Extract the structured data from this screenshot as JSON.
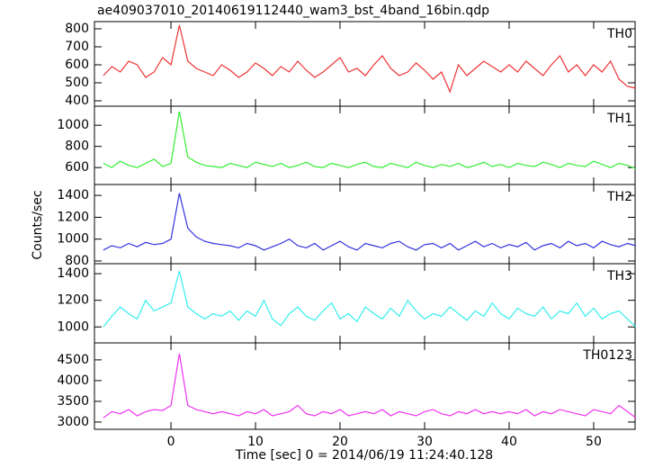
{
  "chart_data": {
    "type": "line",
    "title": "ae409037010_20140619112440_wam3_bst_4band_16bin.qdp",
    "xlabel": "Time [sec] 0 = 2014/06/19 11:24:40.128",
    "ylabel": "Counts/sec",
    "x": [
      -8,
      -7,
      -6,
      -5,
      -4,
      -3,
      -2,
      -1,
      0,
      1,
      2,
      3,
      4,
      5,
      6,
      7,
      8,
      9,
      10,
      11,
      12,
      13,
      14,
      15,
      16,
      17,
      18,
      19,
      20,
      21,
      22,
      23,
      24,
      25,
      26,
      27,
      28,
      29,
      30,
      31,
      32,
      33,
      34,
      35,
      36,
      37,
      38,
      39,
      40,
      41,
      42,
      43,
      44,
      45,
      46,
      47,
      48,
      49,
      50,
      51,
      52,
      53,
      54,
      55
    ],
    "xlim": [
      -9.05,
      54.9
    ],
    "xticks": [
      0,
      10,
      20,
      30,
      40,
      50
    ],
    "panels": [
      {
        "name": "TH0",
        "color": "#ee3333",
        "ylim": [
          370,
          840
        ],
        "yticks": [
          400,
          500,
          600,
          700,
          800
        ],
        "values": [
          540,
          590,
          560,
          620,
          600,
          530,
          560,
          640,
          600,
          820,
          620,
          580,
          560,
          540,
          600,
          570,
          530,
          560,
          610,
          580,
          540,
          590,
          560,
          620,
          570,
          530,
          560,
          600,
          640,
          560,
          580,
          540,
          600,
          650,
          580,
          540,
          560,
          610,
          570,
          520,
          560,
          450,
          600,
          540,
          580,
          620,
          590,
          560,
          600,
          560,
          620,
          580,
          540,
          600,
          650,
          560,
          600,
          540,
          600,
          560,
          620,
          520,
          480,
          470
        ]
      },
      {
        "name": "TH1",
        "color": "#33ee33",
        "ylim": [
          440,
          1180
        ],
        "yticks": [
          600,
          800,
          1000
        ],
        "values": [
          640,
          600,
          660,
          620,
          600,
          640,
          680,
          610,
          640,
          1130,
          700,
          650,
          620,
          610,
          600,
          640,
          620,
          600,
          650,
          630,
          610,
          640,
          600,
          620,
          650,
          610,
          600,
          640,
          620,
          600,
          630,
          650,
          610,
          600,
          640,
          620,
          600,
          650,
          620,
          600,
          630,
          610,
          640,
          600,
          620,
          650,
          610,
          630,
          600,
          640,
          620,
          610,
          650,
          630,
          600,
          640,
          620,
          610,
          660,
          630,
          600,
          640,
          620,
          590
        ]
      },
      {
        "name": "TH2",
        "color": "#3333dd",
        "ylim": [
          775,
          1500
        ],
        "yticks": [
          800,
          1000,
          1200,
          1400
        ],
        "values": [
          900,
          940,
          920,
          960,
          930,
          970,
          950,
          960,
          1000,
          1420,
          1100,
          1020,
          980,
          960,
          950,
          940,
          920,
          960,
          940,
          900,
          930,
          960,
          1000,
          940,
          920,
          960,
          900,
          940,
          980,
          930,
          900,
          960,
          940,
          920,
          960,
          980,
          930,
          900,
          950,
          960,
          920,
          960,
          900,
          940,
          980,
          930,
          960,
          920,
          950,
          930,
          970,
          900,
          940,
          960,
          920,
          980,
          940,
          960,
          920,
          980,
          950,
          930,
          960,
          940
        ]
      },
      {
        "name": "TH3",
        "color": "#33eeee",
        "ylim": [
          880,
          1475
        ],
        "yticks": [
          1000,
          1200,
          1400
        ],
        "values": [
          1000,
          1080,
          1150,
          1100,
          1060,
          1200,
          1120,
          1150,
          1180,
          1420,
          1150,
          1100,
          1060,
          1100,
          1080,
          1120,
          1050,
          1120,
          1080,
          1200,
          1060,
          1010,
          1100,
          1150,
          1080,
          1050,
          1120,
          1180,
          1060,
          1100,
          1040,
          1150,
          1100,
          1060,
          1140,
          1080,
          1200,
          1120,
          1060,
          1100,
          1080,
          1150,
          1100,
          1050,
          1120,
          1080,
          1180,
          1100,
          1060,
          1140,
          1100,
          1080,
          1150,
          1060,
          1120,
          1100,
          1180,
          1080,
          1140,
          1060,
          1100,
          1120,
          1060,
          1000
        ]
      },
      {
        "name": "TH0123",
        "color": "#ee33ee",
        "ylim": [
          2825,
          4910
        ],
        "yticks": [
          3000,
          3500,
          4000,
          4500
        ],
        "values": [
          3100,
          3250,
          3200,
          3300,
          3150,
          3250,
          3300,
          3280,
          3400,
          4650,
          3400,
          3300,
          3250,
          3200,
          3250,
          3200,
          3150,
          3250,
          3200,
          3300,
          3150,
          3200,
          3250,
          3400,
          3200,
          3150,
          3250,
          3200,
          3300,
          3150,
          3200,
          3250,
          3200,
          3300,
          3150,
          3250,
          3200,
          3150,
          3250,
          3300,
          3200,
          3150,
          3250,
          3200,
          3300,
          3200,
          3250,
          3200,
          3250,
          3200,
          3300,
          3150,
          3250,
          3200,
          3300,
          3250,
          3200,
          3150,
          3300,
          3250,
          3200,
          3400,
          3250,
          3100
        ]
      }
    ]
  }
}
